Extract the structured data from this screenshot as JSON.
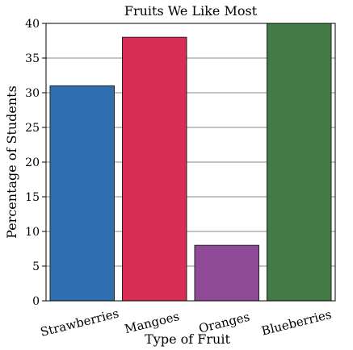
{
  "chart_data": {
    "type": "bar",
    "title": "Fruits We Like Most",
    "xlabel": "Type of Fruit",
    "ylabel": "Percentage of Students",
    "categories": [
      "Strawberries",
      "Mangoes",
      "Oranges",
      "Blueberries"
    ],
    "values": [
      31,
      38,
      8,
      40
    ],
    "colors": [
      "#2f6fb0",
      "#d92d55",
      "#8e4a96",
      "#437a45"
    ],
    "ylim": [
      0,
      40
    ],
    "yticks": [
      "0",
      "5",
      "10",
      "15",
      "20",
      "25",
      "30",
      "35",
      "40"
    ],
    "grid": true,
    "legend": "none"
  }
}
